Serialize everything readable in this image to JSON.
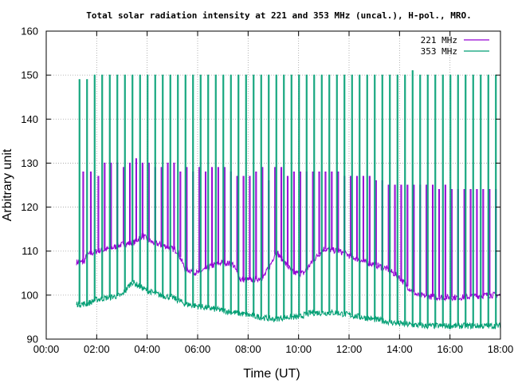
{
  "chart_data": {
    "type": "line",
    "title": "Total solar radiation intensity at 221 and 353 MHz (uncal.), H-pol., MRO.",
    "xlabel": "Time (UT)",
    "ylabel": "Arbitrary unit",
    "x_ticks": [
      "00:00",
      "02:00",
      "04:00",
      "06:00",
      "08:00",
      "10:00",
      "12:00",
      "14:00",
      "16:00",
      "18:00"
    ],
    "y_ticks": [
      "90",
      "100",
      "110",
      "120",
      "130",
      "140",
      "150",
      "160"
    ],
    "xlim_hours": [
      0,
      18
    ],
    "ylim": [
      90,
      160
    ],
    "grid": true,
    "legend_position": "top-right",
    "series": [
      {
        "name": "221 MHz",
        "color": "#9400d3",
        "start_hour": 1.2,
        "end_hour": 18.0,
        "baseline": [
          [
            1.2,
            107.5
          ],
          [
            1.5,
            107.5
          ],
          [
            1.6,
            109
          ],
          [
            2.0,
            110
          ],
          [
            2.5,
            110.5
          ],
          [
            3.0,
            111.5
          ],
          [
            3.5,
            112
          ],
          [
            3.8,
            113.5
          ],
          [
            4.2,
            112
          ],
          [
            4.8,
            111
          ],
          [
            5.2,
            110
          ],
          [
            5.5,
            106
          ],
          [
            6.0,
            105
          ],
          [
            6.5,
            106.5
          ],
          [
            7.0,
            107.5
          ],
          [
            7.4,
            107
          ],
          [
            7.7,
            103.5
          ],
          [
            8.2,
            103.5
          ],
          [
            8.6,
            104
          ],
          [
            8.9,
            107
          ],
          [
            9.1,
            110
          ],
          [
            9.5,
            107
          ],
          [
            9.8,
            105
          ],
          [
            10.2,
            105
          ],
          [
            10.6,
            108
          ],
          [
            11.0,
            110.5
          ],
          [
            11.6,
            110
          ],
          [
            12.0,
            109
          ],
          [
            12.6,
            107.5
          ],
          [
            13.0,
            107
          ],
          [
            13.5,
            106
          ],
          [
            14.0,
            104
          ],
          [
            14.3,
            102
          ],
          [
            14.7,
            100
          ],
          [
            15.5,
            99.5
          ],
          [
            16.5,
            99.5
          ],
          [
            17.5,
            100
          ],
          [
            18.0,
            100
          ]
        ],
        "spikes": [
          [
            1.45,
            128
          ],
          [
            1.75,
            128
          ],
          [
            2.05,
            127
          ],
          [
            2.3,
            130
          ],
          [
            2.55,
            130
          ],
          [
            2.8,
            130
          ],
          [
            3.05,
            129
          ],
          [
            3.3,
            130
          ],
          [
            3.55,
            131
          ],
          [
            3.8,
            130
          ],
          [
            4.05,
            130
          ],
          [
            4.3,
            129
          ],
          [
            4.55,
            129
          ],
          [
            4.8,
            130
          ],
          [
            5.05,
            130
          ],
          [
            5.3,
            128
          ],
          [
            5.55,
            129
          ],
          [
            5.8,
            128
          ],
          [
            6.05,
            129
          ],
          [
            6.3,
            128
          ],
          [
            6.55,
            129
          ],
          [
            6.8,
            129
          ],
          [
            7.05,
            129
          ],
          [
            7.3,
            128
          ],
          [
            7.55,
            127
          ],
          [
            7.8,
            127
          ],
          [
            8.05,
            127
          ],
          [
            8.3,
            128
          ],
          [
            8.55,
            129
          ],
          [
            8.8,
            126
          ],
          [
            9.05,
            129
          ],
          [
            9.3,
            129
          ],
          [
            9.55,
            127
          ],
          [
            9.8,
            128
          ],
          [
            10.05,
            128
          ],
          [
            10.3,
            128
          ],
          [
            10.55,
            128
          ],
          [
            10.8,
            128
          ],
          [
            11.05,
            128
          ],
          [
            11.3,
            128
          ],
          [
            11.55,
            128
          ],
          [
            11.8,
            127
          ],
          [
            12.05,
            127
          ],
          [
            12.3,
            127
          ],
          [
            12.55,
            127
          ],
          [
            12.8,
            127
          ],
          [
            13.05,
            126
          ],
          [
            13.3,
            126
          ],
          [
            13.55,
            125
          ],
          [
            13.8,
            125
          ],
          [
            14.05,
            125
          ],
          [
            14.3,
            125
          ],
          [
            14.55,
            125
          ],
          [
            14.8,
            125
          ],
          [
            15.05,
            125
          ],
          [
            15.3,
            125
          ],
          [
            15.55,
            124
          ],
          [
            15.8,
            125
          ],
          [
            16.05,
            124
          ],
          [
            16.3,
            124
          ],
          [
            16.55,
            124
          ],
          [
            16.8,
            124
          ],
          [
            17.05,
            124
          ],
          [
            17.3,
            124
          ],
          [
            17.55,
            124
          ],
          [
            17.8,
            124
          ]
        ]
      },
      {
        "name": "353 MHz",
        "color": "#009e73",
        "start_hour": 1.2,
        "end_hour": 18.0,
        "baseline": [
          [
            1.2,
            98
          ],
          [
            1.6,
            98
          ],
          [
            2.0,
            99
          ],
          [
            2.5,
            99.5
          ],
          [
            3.0,
            100
          ],
          [
            3.4,
            103
          ],
          [
            3.7,
            102
          ],
          [
            4.0,
            101
          ],
          [
            4.5,
            100
          ],
          [
            5.0,
            99.5
          ],
          [
            5.5,
            98
          ],
          [
            6.0,
            97.5
          ],
          [
            6.5,
            97
          ],
          [
            7.0,
            96.5
          ],
          [
            7.5,
            96
          ],
          [
            8.0,
            95.5
          ],
          [
            8.5,
            95
          ],
          [
            9.0,
            94.5
          ],
          [
            9.5,
            95
          ],
          [
            10.0,
            95
          ],
          [
            10.5,
            96
          ],
          [
            11.0,
            96
          ],
          [
            11.5,
            96
          ],
          [
            12.0,
            95.5
          ],
          [
            12.5,
            95
          ],
          [
            13.0,
            94.5
          ],
          [
            13.5,
            94
          ],
          [
            14.0,
            93.5
          ],
          [
            15.0,
            93
          ],
          [
            16.0,
            93
          ],
          [
            17.0,
            93
          ],
          [
            18.0,
            93
          ]
        ],
        "spikes": [
          [
            1.3,
            149
          ],
          [
            1.6,
            149
          ],
          [
            1.9,
            150
          ],
          [
            2.2,
            150
          ],
          [
            2.5,
            150
          ],
          [
            2.8,
            150
          ],
          [
            3.1,
            150
          ],
          [
            3.4,
            150
          ],
          [
            3.7,
            150
          ],
          [
            4.0,
            150
          ],
          [
            4.3,
            150
          ],
          [
            4.6,
            150
          ],
          [
            4.9,
            150
          ],
          [
            5.2,
            150
          ],
          [
            5.5,
            150
          ],
          [
            5.8,
            150
          ],
          [
            6.1,
            150
          ],
          [
            6.4,
            150
          ],
          [
            6.7,
            150
          ],
          [
            7.0,
            150
          ],
          [
            7.3,
            150
          ],
          [
            7.6,
            150
          ],
          [
            7.9,
            150
          ],
          [
            8.2,
            150
          ],
          [
            8.5,
            150
          ],
          [
            8.8,
            150
          ],
          [
            9.1,
            150
          ],
          [
            9.4,
            150
          ],
          [
            9.7,
            150
          ],
          [
            10.0,
            150
          ],
          [
            10.3,
            150
          ],
          [
            10.6,
            150
          ],
          [
            10.9,
            150
          ],
          [
            11.2,
            150
          ],
          [
            11.5,
            150
          ],
          [
            11.8,
            150
          ],
          [
            12.1,
            150
          ],
          [
            12.4,
            150
          ],
          [
            12.7,
            150
          ],
          [
            13.0,
            150
          ],
          [
            13.3,
            150
          ],
          [
            13.6,
            150
          ],
          [
            13.9,
            150
          ],
          [
            14.2,
            150
          ],
          [
            14.5,
            151
          ],
          [
            14.8,
            150
          ],
          [
            15.1,
            150
          ],
          [
            15.4,
            150
          ],
          [
            15.7,
            150
          ],
          [
            16.0,
            150
          ],
          [
            16.3,
            150
          ],
          [
            16.6,
            150
          ],
          [
            16.9,
            150
          ],
          [
            17.2,
            150
          ],
          [
            17.5,
            150
          ],
          [
            17.8,
            150
          ]
        ]
      }
    ]
  }
}
